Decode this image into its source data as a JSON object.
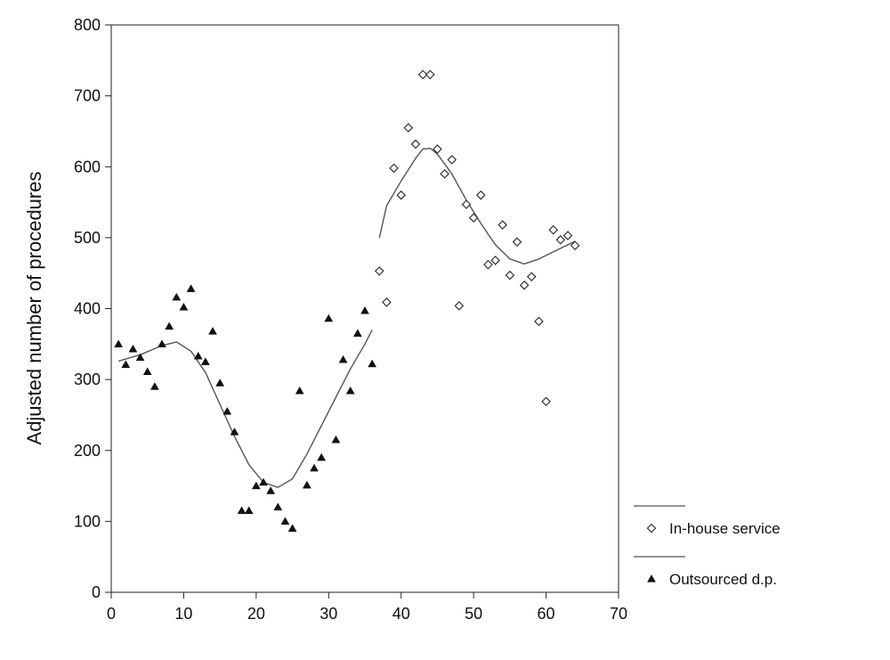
{
  "chart_data": {
    "type": "scatter",
    "title": "",
    "xlabel": "",
    "ylabel": "Adjusted number of procedures",
    "xlim": [
      0,
      70
    ],
    "ylim": [
      0,
      800
    ],
    "xticks": [
      0,
      10,
      20,
      30,
      40,
      50,
      60,
      70
    ],
    "yticks": [
      0,
      100,
      200,
      300,
      400,
      500,
      600,
      700,
      800
    ],
    "grid": false,
    "legend_position": "bottom-right outside plot",
    "series": [
      {
        "name": "In-house service",
        "marker": "hollow-diamond",
        "color": "#333333",
        "points": [
          [
            37,
            453
          ],
          [
            38,
            409
          ],
          [
            39,
            598
          ],
          [
            40,
            560
          ],
          [
            41,
            655
          ],
          [
            42,
            632
          ],
          [
            43,
            730
          ],
          [
            44,
            730
          ],
          [
            45,
            625
          ],
          [
            46,
            590
          ],
          [
            47,
            610
          ],
          [
            48,
            404
          ],
          [
            49,
            547
          ],
          [
            50,
            528
          ],
          [
            51,
            560
          ],
          [
            52,
            462
          ],
          [
            53,
            468
          ],
          [
            54,
            518
          ],
          [
            55,
            447
          ],
          [
            56,
            494
          ],
          [
            57,
            433
          ],
          [
            58,
            445
          ],
          [
            59,
            382
          ],
          [
            60,
            269
          ],
          [
            61,
            511
          ],
          [
            62,
            497
          ],
          [
            63,
            503
          ],
          [
            64,
            489
          ]
        ],
        "trend": [
          [
            37,
            500
          ],
          [
            38,
            545
          ],
          [
            40,
            580
          ],
          [
            42,
            612
          ],
          [
            43,
            625
          ],
          [
            44,
            626
          ],
          [
            45,
            618
          ],
          [
            47,
            590
          ],
          [
            49,
            553
          ],
          [
            51,
            520
          ],
          [
            53,
            490
          ],
          [
            55,
            470
          ],
          [
            57,
            463
          ],
          [
            59,
            470
          ],
          [
            61,
            480
          ],
          [
            64,
            495
          ]
        ]
      },
      {
        "name": "Outsourced d.p.",
        "marker": "filled-triangle",
        "color": "#111111",
        "points": [
          [
            1,
            350
          ],
          [
            2,
            321
          ],
          [
            3,
            343
          ],
          [
            4,
            331
          ],
          [
            5,
            311
          ],
          [
            6,
            290
          ],
          [
            7,
            350
          ],
          [
            8,
            375
          ],
          [
            9,
            416
          ],
          [
            10,
            402
          ],
          [
            11,
            428
          ],
          [
            12,
            333
          ],
          [
            13,
            325
          ],
          [
            14,
            368
          ],
          [
            15,
            295
          ],
          [
            16,
            255
          ],
          [
            17,
            226
          ],
          [
            18,
            115
          ],
          [
            19,
            115
          ],
          [
            20,
            150
          ],
          [
            21,
            155
          ],
          [
            22,
            143
          ],
          [
            23,
            120
          ],
          [
            24,
            100
          ],
          [
            25,
            90
          ],
          [
            26,
            284
          ],
          [
            27,
            151
          ],
          [
            28,
            175
          ],
          [
            29,
            190
          ],
          [
            30,
            386
          ],
          [
            31,
            215
          ],
          [
            32,
            328
          ],
          [
            33,
            284
          ],
          [
            34,
            365
          ],
          [
            35,
            397
          ],
          [
            36,
            322
          ]
        ],
        "trend": [
          [
            1,
            326
          ],
          [
            4,
            335
          ],
          [
            7,
            348
          ],
          [
            9,
            353
          ],
          [
            11,
            340
          ],
          [
            13,
            310
          ],
          [
            15,
            265
          ],
          [
            17,
            220
          ],
          [
            19,
            180
          ],
          [
            21,
            155
          ],
          [
            23,
            148
          ],
          [
            25,
            160
          ],
          [
            27,
            195
          ],
          [
            29,
            235
          ],
          [
            31,
            275
          ],
          [
            33,
            315
          ],
          [
            35,
            350
          ],
          [
            36,
            370
          ]
        ]
      }
    ]
  }
}
